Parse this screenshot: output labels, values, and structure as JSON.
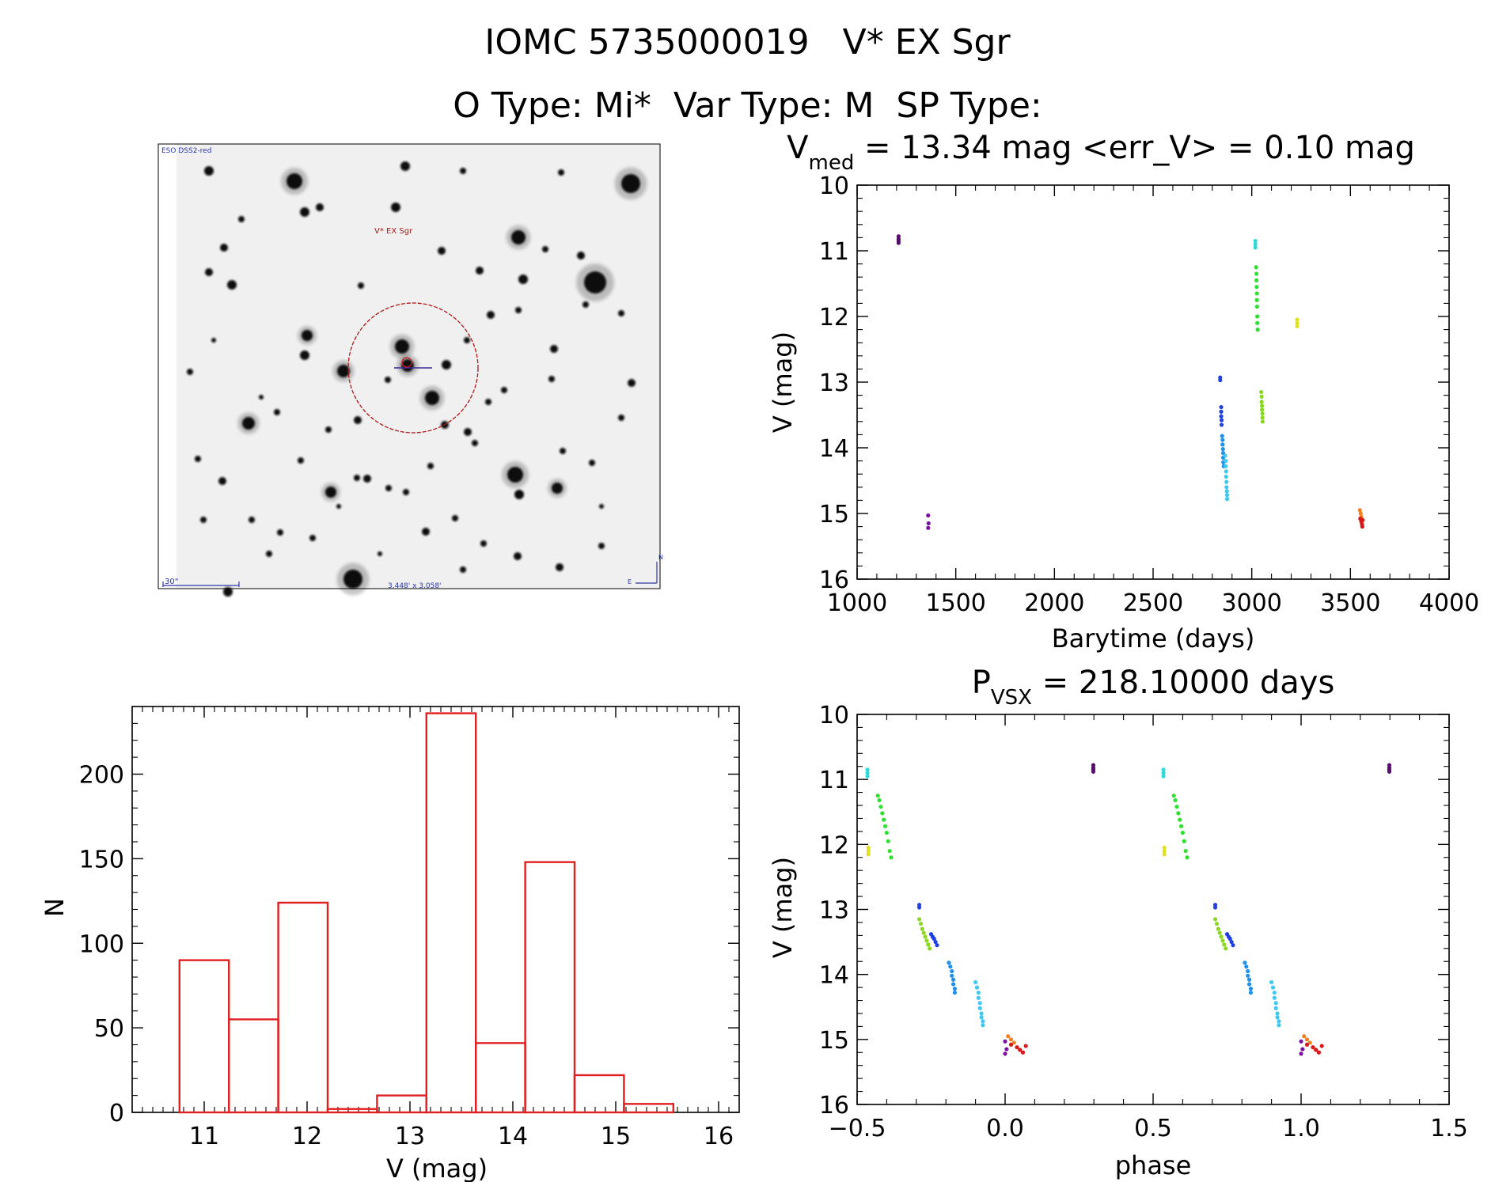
{
  "header": {
    "line1": "IOMC 5735000019   V* EX Sgr",
    "line2": "O Type: Mi*  Var Type: M  SP Type:"
  },
  "finding_chart": {
    "survey_label": "ESO DSS2-red",
    "target_label": "V* EX Sgr",
    "scale_label": "30\"",
    "fov_label": "3.448' x 3.058'",
    "north_label": "N",
    "east_label": "E",
    "colors": {
      "label": "#2a36a8",
      "target": "#b01818"
    }
  },
  "chart_data": [
    {
      "type": "scatter",
      "id": "lightcurve",
      "title": {
        "main": "V",
        "sub": "med",
        "rest": " = 13.34 mag <err_V> = 0.10 mag"
      },
      "xlabel": "Barytime (days)",
      "ylabel": "V (mag)",
      "xlim": [
        1000,
        4000
      ],
      "ylim": [
        16,
        10
      ],
      "y_inverted": true,
      "x_ticks": [
        1000,
        1500,
        2000,
        2500,
        3000,
        3500,
        4000
      ],
      "y_ticks": [
        10,
        11,
        12,
        13,
        14,
        15,
        16
      ],
      "groups": [
        {
          "color": "#5a0a6e",
          "x": [
            1210,
            1210,
            1210,
            1210
          ],
          "y": [
            10.78,
            10.82,
            10.85,
            10.88
          ]
        },
        {
          "color": "#7a14a0",
          "x": [
            1360,
            1362,
            1360
          ],
          "y": [
            15.03,
            15.15,
            15.22
          ]
        },
        {
          "color": "#2040e0",
          "x": [
            2840,
            2840,
            2845,
            2845,
            2845,
            2847,
            2847
          ],
          "y": [
            12.93,
            12.97,
            13.38,
            13.45,
            13.52,
            13.58,
            13.65
          ]
        },
        {
          "color": "#2090e8",
          "x": [
            2850,
            2852,
            2852,
            2854,
            2855,
            2855,
            2856,
            2858
          ],
          "y": [
            13.82,
            13.88,
            13.95,
            14.02,
            14.08,
            14.15,
            14.22,
            14.28
          ]
        },
        {
          "color": "#40c8f0",
          "x": [
            2865,
            2868,
            2868,
            2870,
            2870,
            2872,
            2872,
            2874,
            2875,
            2875
          ],
          "y": [
            14.12,
            14.2,
            14.28,
            14.36,
            14.44,
            14.52,
            14.6,
            14.66,
            14.72,
            14.78
          ]
        },
        {
          "color": "#30d8d8",
          "x": [
            3018,
            3018,
            3018
          ],
          "y": [
            10.85,
            10.9,
            10.95
          ]
        },
        {
          "color": "#30e030",
          "x": [
            3022,
            3024,
            3024,
            3025,
            3026,
            3026,
            3027,
            3028,
            3028,
            3030
          ],
          "y": [
            11.25,
            11.35,
            11.45,
            11.55,
            11.65,
            11.75,
            11.85,
            12.0,
            12.1,
            12.2
          ]
        },
        {
          "color": "#8cd820",
          "x": [
            3048,
            3050,
            3050,
            3052,
            3052,
            3054,
            3054,
            3055
          ],
          "y": [
            13.15,
            13.22,
            13.3,
            13.36,
            13.42,
            13.48,
            13.54,
            13.6
          ]
        },
        {
          "color": "#e0e020",
          "x": [
            3230,
            3230,
            3230
          ],
          "y": [
            12.05,
            12.1,
            12.15
          ]
        },
        {
          "color": "#f08020",
          "x": [
            3548,
            3552,
            3555
          ],
          "y": [
            14.95,
            15.0,
            15.05
          ]
        },
        {
          "color": "#d81818",
          "x": [
            3550,
            3555,
            3558,
            3560,
            3562
          ],
          "y": [
            15.08,
            15.12,
            15.16,
            15.2,
            15.1
          ]
        }
      ]
    },
    {
      "type": "bar",
      "id": "histogram",
      "title": "",
      "xlabel": "V (mag)",
      "ylabel": "N",
      "xlim": [
        10.3,
        16.2
      ],
      "ylim": [
        0,
        240
      ],
      "x_ticks": [
        11,
        12,
        13,
        14,
        15,
        16
      ],
      "y_ticks": [
        0,
        50,
        100,
        150,
        200
      ],
      "bin_edges": [
        10.76,
        11.24,
        11.72,
        12.2,
        12.68,
        13.16,
        13.64,
        14.12,
        14.6,
        15.08,
        15.56
      ],
      "values": [
        90,
        55,
        124,
        2,
        10,
        236,
        41,
        148,
        22,
        5
      ],
      "color": "#e02020"
    },
    {
      "type": "scatter",
      "id": "phased",
      "title": {
        "main": "P",
        "sub": "VSX",
        "rest": " = 218.10000 days"
      },
      "xlabel": "phase",
      "ylabel": "V (mag)",
      "xlim": [
        -0.5,
        1.5
      ],
      "ylim": [
        16,
        10
      ],
      "y_inverted": true,
      "x_ticks": [
        -0.5,
        0.0,
        0.5,
        1.0,
        1.5
      ],
      "x_tick_labels": [
        "−0.5",
        "0.0",
        "0.5",
        "1.0",
        "1.5"
      ],
      "y_ticks": [
        10,
        11,
        12,
        13,
        14,
        15,
        16
      ],
      "repeat_offset": 1.0,
      "groups": [
        {
          "color": "#30d8d8",
          "x": [
            -0.465,
            -0.465,
            -0.465
          ],
          "y": [
            10.85,
            10.9,
            10.95
          ]
        },
        {
          "color": "#e0e020",
          "x": [
            -0.462,
            -0.462,
            -0.462
          ],
          "y": [
            12.05,
            12.1,
            12.15
          ]
        },
        {
          "color": "#30e030",
          "x": [
            -0.43,
            -0.425,
            -0.42,
            -0.415,
            -0.41,
            -0.405,
            -0.4,
            -0.395,
            -0.39,
            -0.385
          ],
          "y": [
            11.25,
            11.32,
            11.42,
            11.52,
            11.62,
            11.72,
            11.82,
            11.95,
            12.1,
            12.2
          ]
        },
        {
          "color": "#8cd820",
          "x": [
            -0.29,
            -0.285,
            -0.28,
            -0.275,
            -0.27,
            -0.265,
            -0.26,
            -0.255
          ],
          "y": [
            13.15,
            13.22,
            13.3,
            13.36,
            13.42,
            13.48,
            13.54,
            13.6
          ]
        },
        {
          "color": "#2040e0",
          "x": [
            -0.29,
            -0.29,
            -0.25,
            -0.245,
            -0.24,
            -0.235,
            -0.23
          ],
          "y": [
            12.93,
            12.97,
            13.38,
            13.42,
            13.45,
            13.5,
            13.55
          ]
        },
        {
          "color": "#2090e8",
          "x": [
            -0.19,
            -0.185,
            -0.18,
            -0.18,
            -0.175,
            -0.175,
            -0.17,
            -0.17
          ],
          "y": [
            13.82,
            13.88,
            13.95,
            14.02,
            14.08,
            14.15,
            14.22,
            14.28
          ]
        },
        {
          "color": "#40c8f0",
          "x": [
            -0.1,
            -0.095,
            -0.09,
            -0.09,
            -0.085,
            -0.085,
            -0.08,
            -0.08,
            -0.075,
            -0.075
          ],
          "y": [
            14.12,
            14.2,
            14.28,
            14.36,
            14.44,
            14.52,
            14.6,
            14.66,
            14.72,
            14.78
          ]
        },
        {
          "color": "#7a14a0",
          "x": [
            0.0,
            0.005,
            0.0
          ],
          "y": [
            15.03,
            15.15,
            15.22
          ]
        },
        {
          "color": "#f08020",
          "x": [
            0.01,
            0.02,
            0.03
          ],
          "y": [
            14.95,
            15.0,
            15.05
          ]
        },
        {
          "color": "#d81818",
          "x": [
            0.02,
            0.04,
            0.05,
            0.06,
            0.07
          ],
          "y": [
            15.08,
            15.12,
            15.16,
            15.2,
            15.1
          ]
        },
        {
          "color": "#5a0a6e",
          "x": [
            0.298,
            0.298,
            0.298,
            0.298
          ],
          "y": [
            10.78,
            10.82,
            10.85,
            10.88
          ]
        }
      ]
    }
  ]
}
